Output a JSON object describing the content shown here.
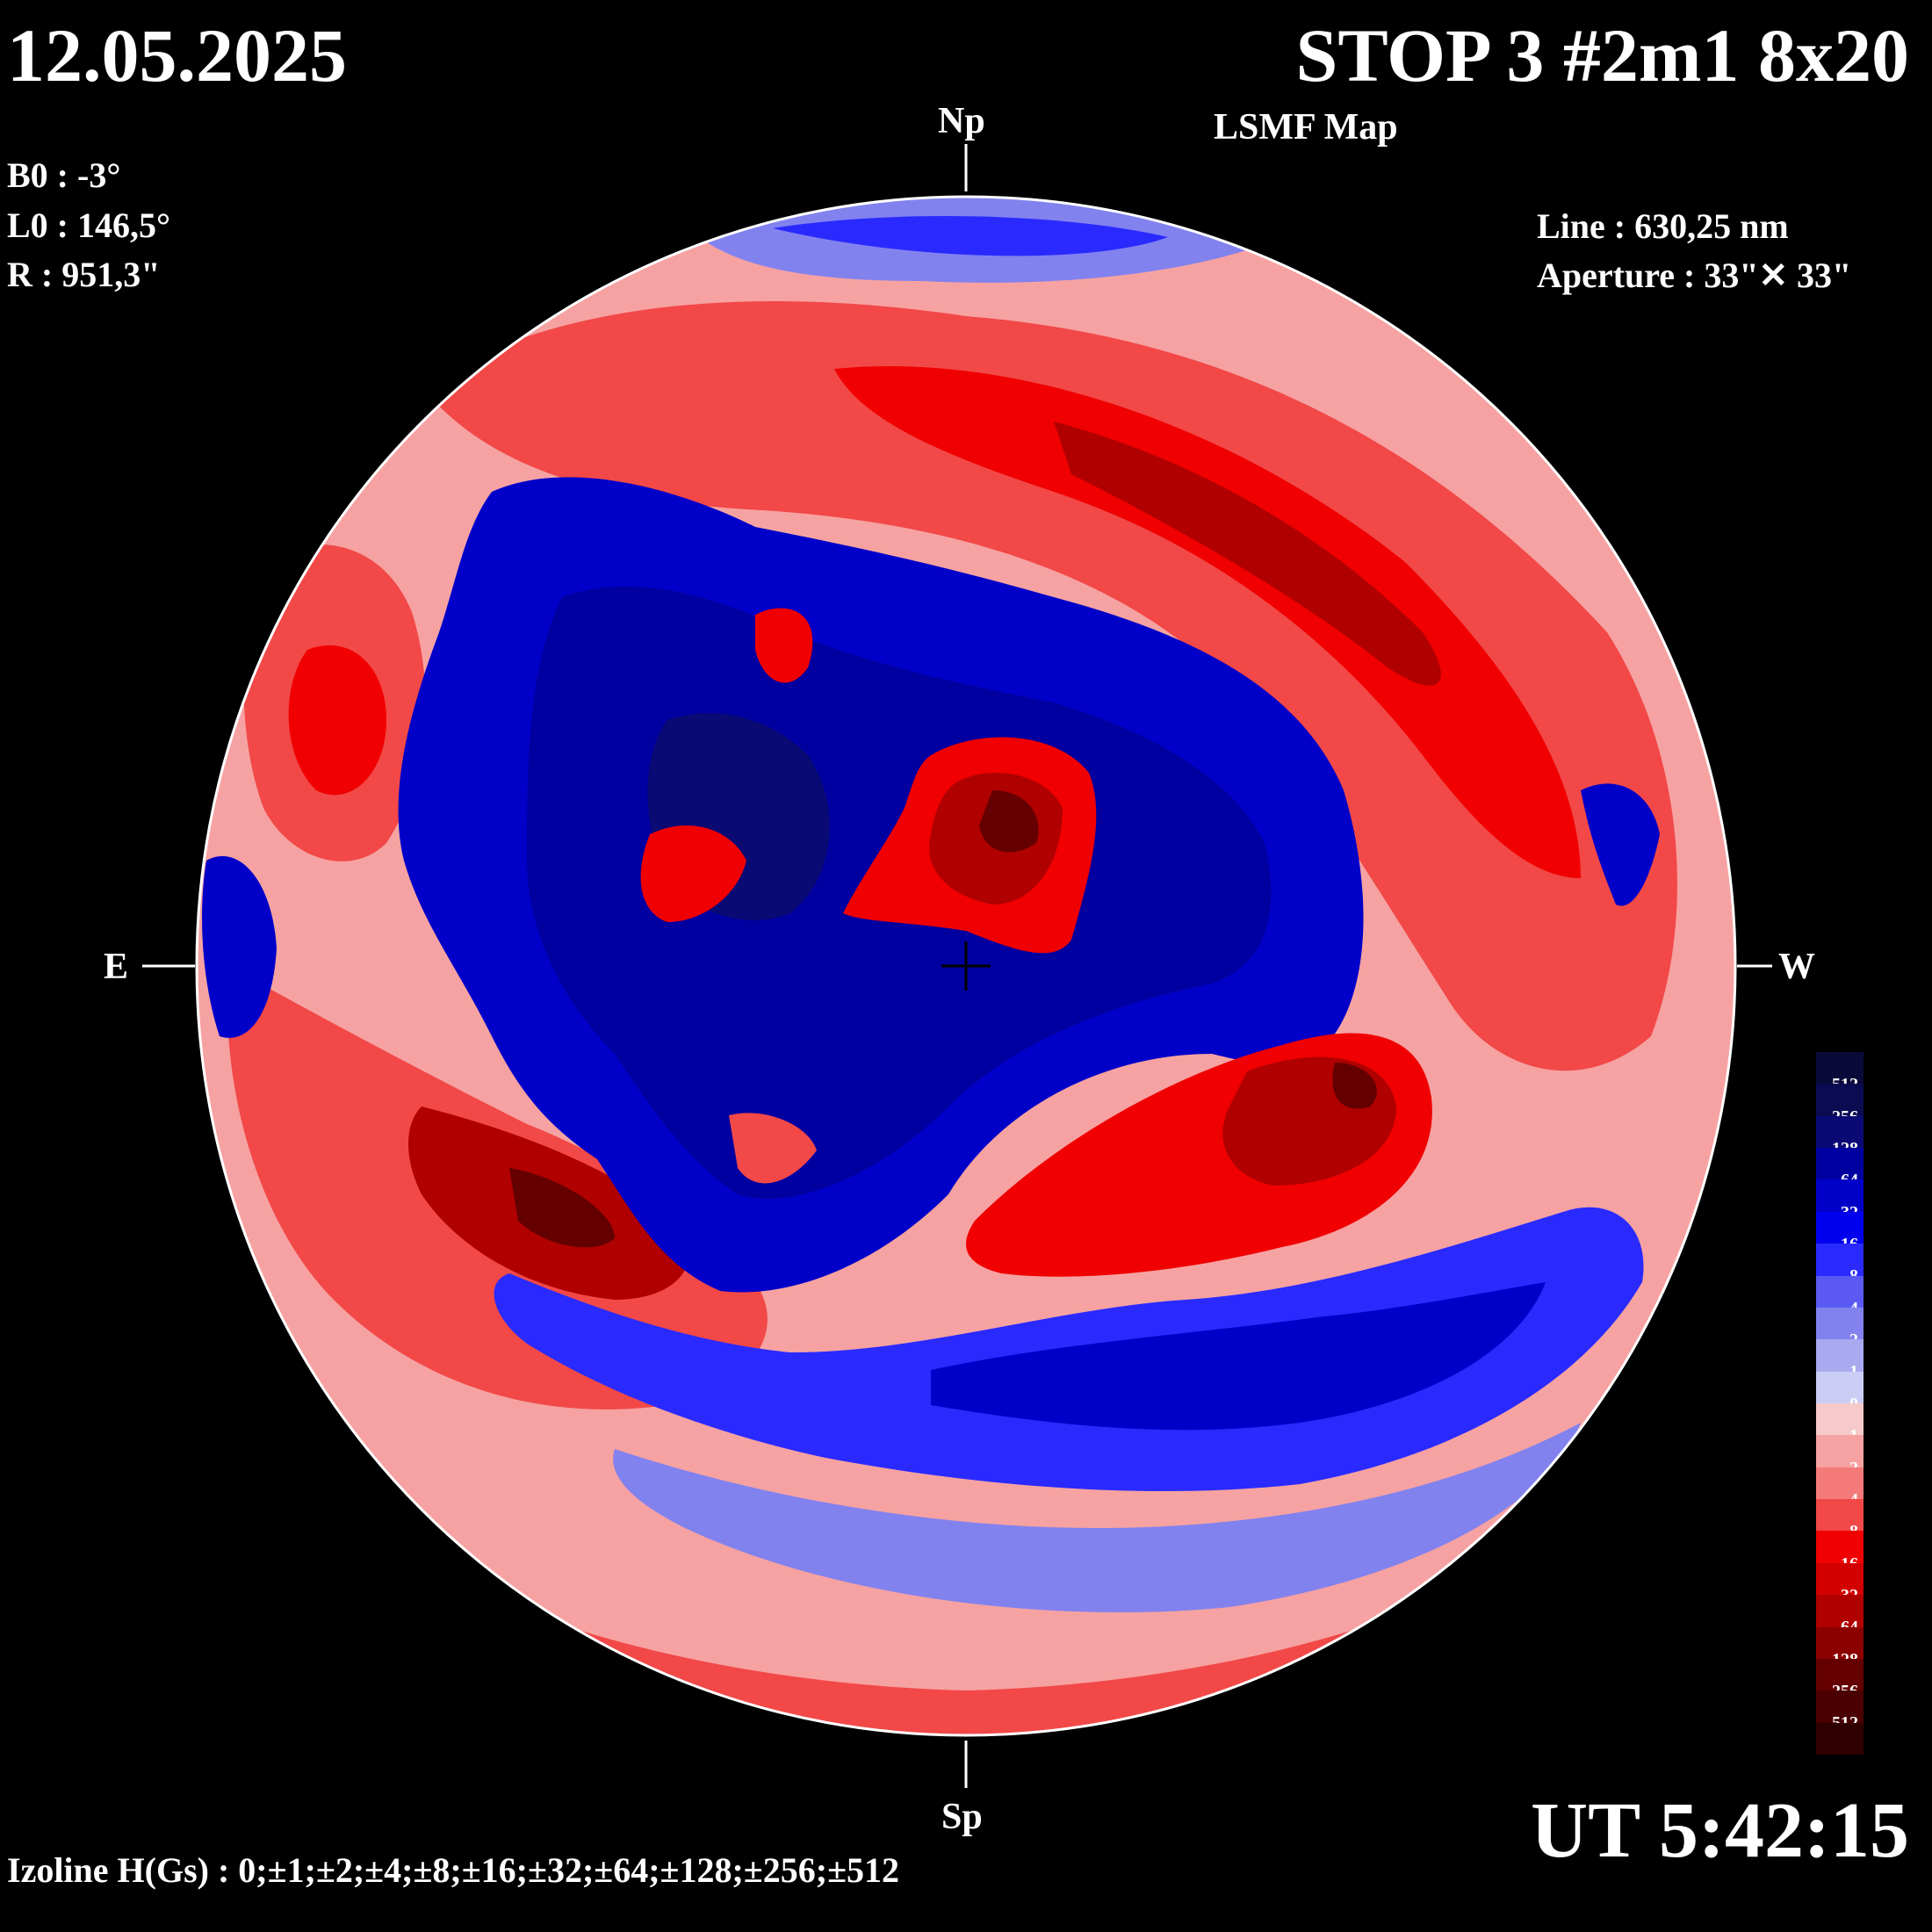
{
  "header": {
    "date": "12.05.2025",
    "title": "STOP 3 #2m1 8x20",
    "subtitle": "LSMF  Map"
  },
  "parameters": {
    "b0": "B0 : -3°",
    "l0": "L0 : 146,5°",
    "r": "R  : 951,3\"",
    "line": "Line :  630,25 nm",
    "aperture": "Aperture : 33\"✕ 33\""
  },
  "directions": {
    "north": "Np",
    "south": "Sp",
    "east": "E",
    "west": "W"
  },
  "time": "UT 5:42:15",
  "izoline": "Izoline H(Gs) : 0;±1;±2;±4;±8;±16;±32;±64;±128;±256;±512",
  "colorbar": {
    "levels": [
      {
        "label": "-512",
        "color": "#0a0a3a"
      },
      {
        "label": "-256",
        "color": "#0b0b52"
      },
      {
        "label": "-128",
        "color": "#0a0a75"
      },
      {
        "label": "-64",
        "color": "#0000a0"
      },
      {
        "label": "-32",
        "color": "#0000c8"
      },
      {
        "label": "-16",
        "color": "#0000ee"
      },
      {
        "label": "-8",
        "color": "#2a2aff"
      },
      {
        "label": "-4",
        "color": "#5a5af2"
      },
      {
        "label": "-2",
        "color": "#8282ee"
      },
      {
        "label": "-1",
        "color": "#a9a9f0"
      },
      {
        "label": "0",
        "color": "#cccdf4"
      },
      {
        "label": "1",
        "color": "#f6caca"
      },
      {
        "label": "2",
        "color": "#f6a2a2"
      },
      {
        "label": "4",
        "color": "#f47a7a"
      },
      {
        "label": "8",
        "color": "#f24848"
      },
      {
        "label": "16",
        "color": "#f00000"
      },
      {
        "label": "32",
        "color": "#d20000"
      },
      {
        "label": "64",
        "color": "#b00000"
      },
      {
        "label": "128",
        "color": "#8c0000"
      },
      {
        "label": "256",
        "color": "#640000"
      },
      {
        "label": "512",
        "color": "#4a0000"
      },
      {
        "label": "",
        "color": "#300000"
      }
    ]
  },
  "map_regions": {
    "background_color": "#000000",
    "neutral_line_color": "#ffffff",
    "outer_ring_color": "#f6a2a2",
    "negative_colors": [
      "#cccdf4",
      "#8282ee",
      "#2a2aff",
      "#0000c8",
      "#0a0a75"
    ],
    "positive_colors": [
      "#f6a2a2",
      "#f24848",
      "#f00000",
      "#b00000",
      "#640000"
    ]
  }
}
